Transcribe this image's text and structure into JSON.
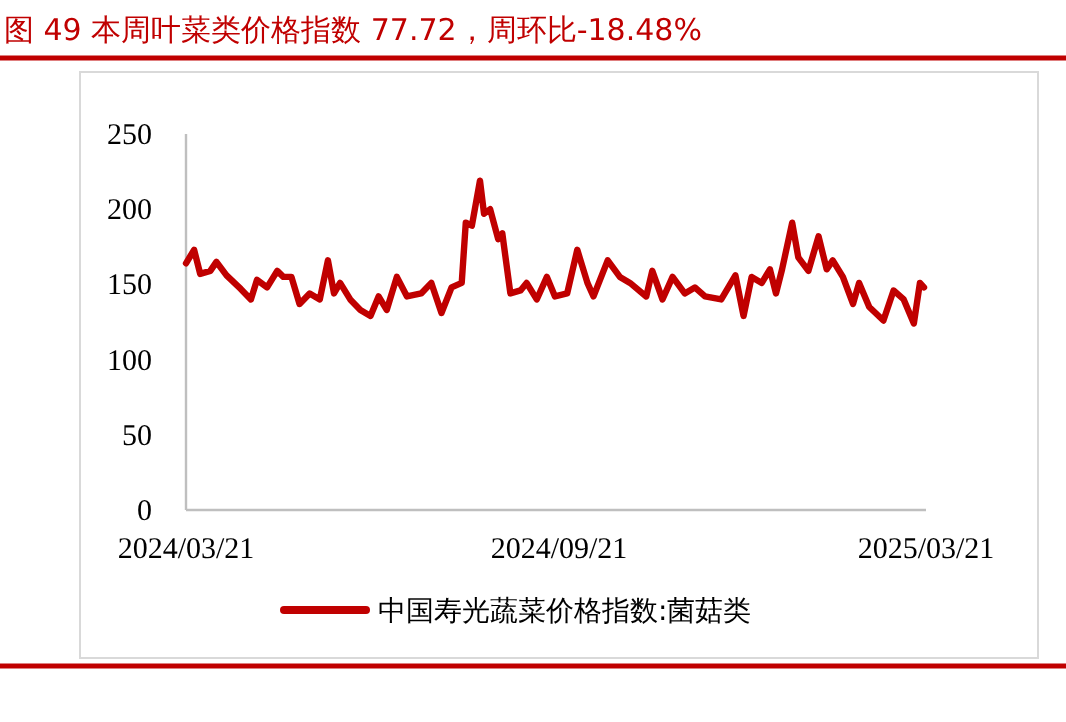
{
  "chart_data": {
    "type": "line",
    "title": "图 49 本周叶菜类价格指数 77.72，周环比-18.48%",
    "x": [
      "2024-03-21",
      "2024-03-25",
      "2024-03-28",
      "2024-04-02",
      "2024-04-05",
      "2024-04-10",
      "2024-04-17",
      "2024-04-22",
      "2024-04-25",
      "2024-04-30",
      "2024-05-05",
      "2024-05-08",
      "2024-05-12",
      "2024-05-16",
      "2024-05-21",
      "2024-05-26",
      "2024-05-30",
      "2024-06-02",
      "2024-06-05",
      "2024-06-10",
      "2024-06-15",
      "2024-06-20",
      "2024-06-24",
      "2024-06-28",
      "2024-07-03",
      "2024-07-08",
      "2024-07-15",
      "2024-07-20",
      "2024-07-25",
      "2024-07-30",
      "2024-08-04",
      "2024-08-06",
      "2024-08-09",
      "2024-08-13",
      "2024-08-15",
      "2024-08-18",
      "2024-08-22",
      "2024-08-24",
      "2024-08-28",
      "2024-09-02",
      "2024-09-05",
      "2024-09-10",
      "2024-09-15",
      "2024-09-19",
      "2024-09-25",
      "2024-09-30",
      "2024-10-05",
      "2024-10-08",
      "2024-10-15",
      "2024-10-21",
      "2024-10-26",
      "2024-11-03",
      "2024-11-06",
      "2024-11-11",
      "2024-11-16",
      "2024-11-22",
      "2024-11-27",
      "2024-12-02",
      "2024-12-10",
      "2024-12-17",
      "2024-12-21",
      "2024-12-25",
      "2024-12-30",
      "2025-01-03",
      "2025-01-06",
      "2025-01-09",
      "2025-01-14",
      "2025-01-17",
      "2025-01-22",
      "2025-01-27",
      "2025-01-31",
      "2025-02-03",
      "2025-02-08",
      "2025-02-13",
      "2025-02-16",
      "2025-02-21",
      "2025-02-28",
      "2025-03-05",
      "2025-03-10",
      "2025-03-15",
      "2025-03-18",
      "2025-03-20"
    ],
    "series": [
      {
        "name": "中国寿光蔬菜价格指数:菌菇类",
        "color": "#c00000",
        "values": [
          164,
          173,
          157,
          159,
          165,
          156,
          147,
          140,
          153,
          148,
          159,
          155,
          155,
          137,
          144,
          140,
          166,
          144,
          151,
          140,
          133,
          129,
          142,
          133,
          155,
          142,
          144,
          151,
          131,
          148,
          151,
          191,
          189,
          219,
          197,
          200,
          180,
          184,
          144,
          146,
          151,
          140,
          155,
          142,
          144,
          173,
          151,
          142,
          166,
          155,
          151,
          142,
          159,
          140,
          155,
          144,
          148,
          142,
          140,
          156,
          129,
          155,
          151,
          160,
          144,
          160,
          191,
          168,
          159,
          182,
          160,
          166,
          155,
          137,
          151,
          135,
          126,
          146,
          140,
          124,
          151,
          148
        ]
      }
    ],
    "xlim": [
      "2024-03-21",
      "2025-03-21"
    ],
    "xticks": [
      {
        "value": "2024-03-21",
        "label": "2024/03/21"
      },
      {
        "value": "2024-09-21",
        "label": "2024/09/21"
      },
      {
        "value": "2025-03-21",
        "label": "2025/03/21"
      }
    ],
    "ylim": [
      0,
      250
    ],
    "yticks": [
      0,
      50,
      100,
      150,
      200,
      250
    ],
    "grid": false,
    "legend": "bottom",
    "marker": "none",
    "line_style": "solid"
  }
}
